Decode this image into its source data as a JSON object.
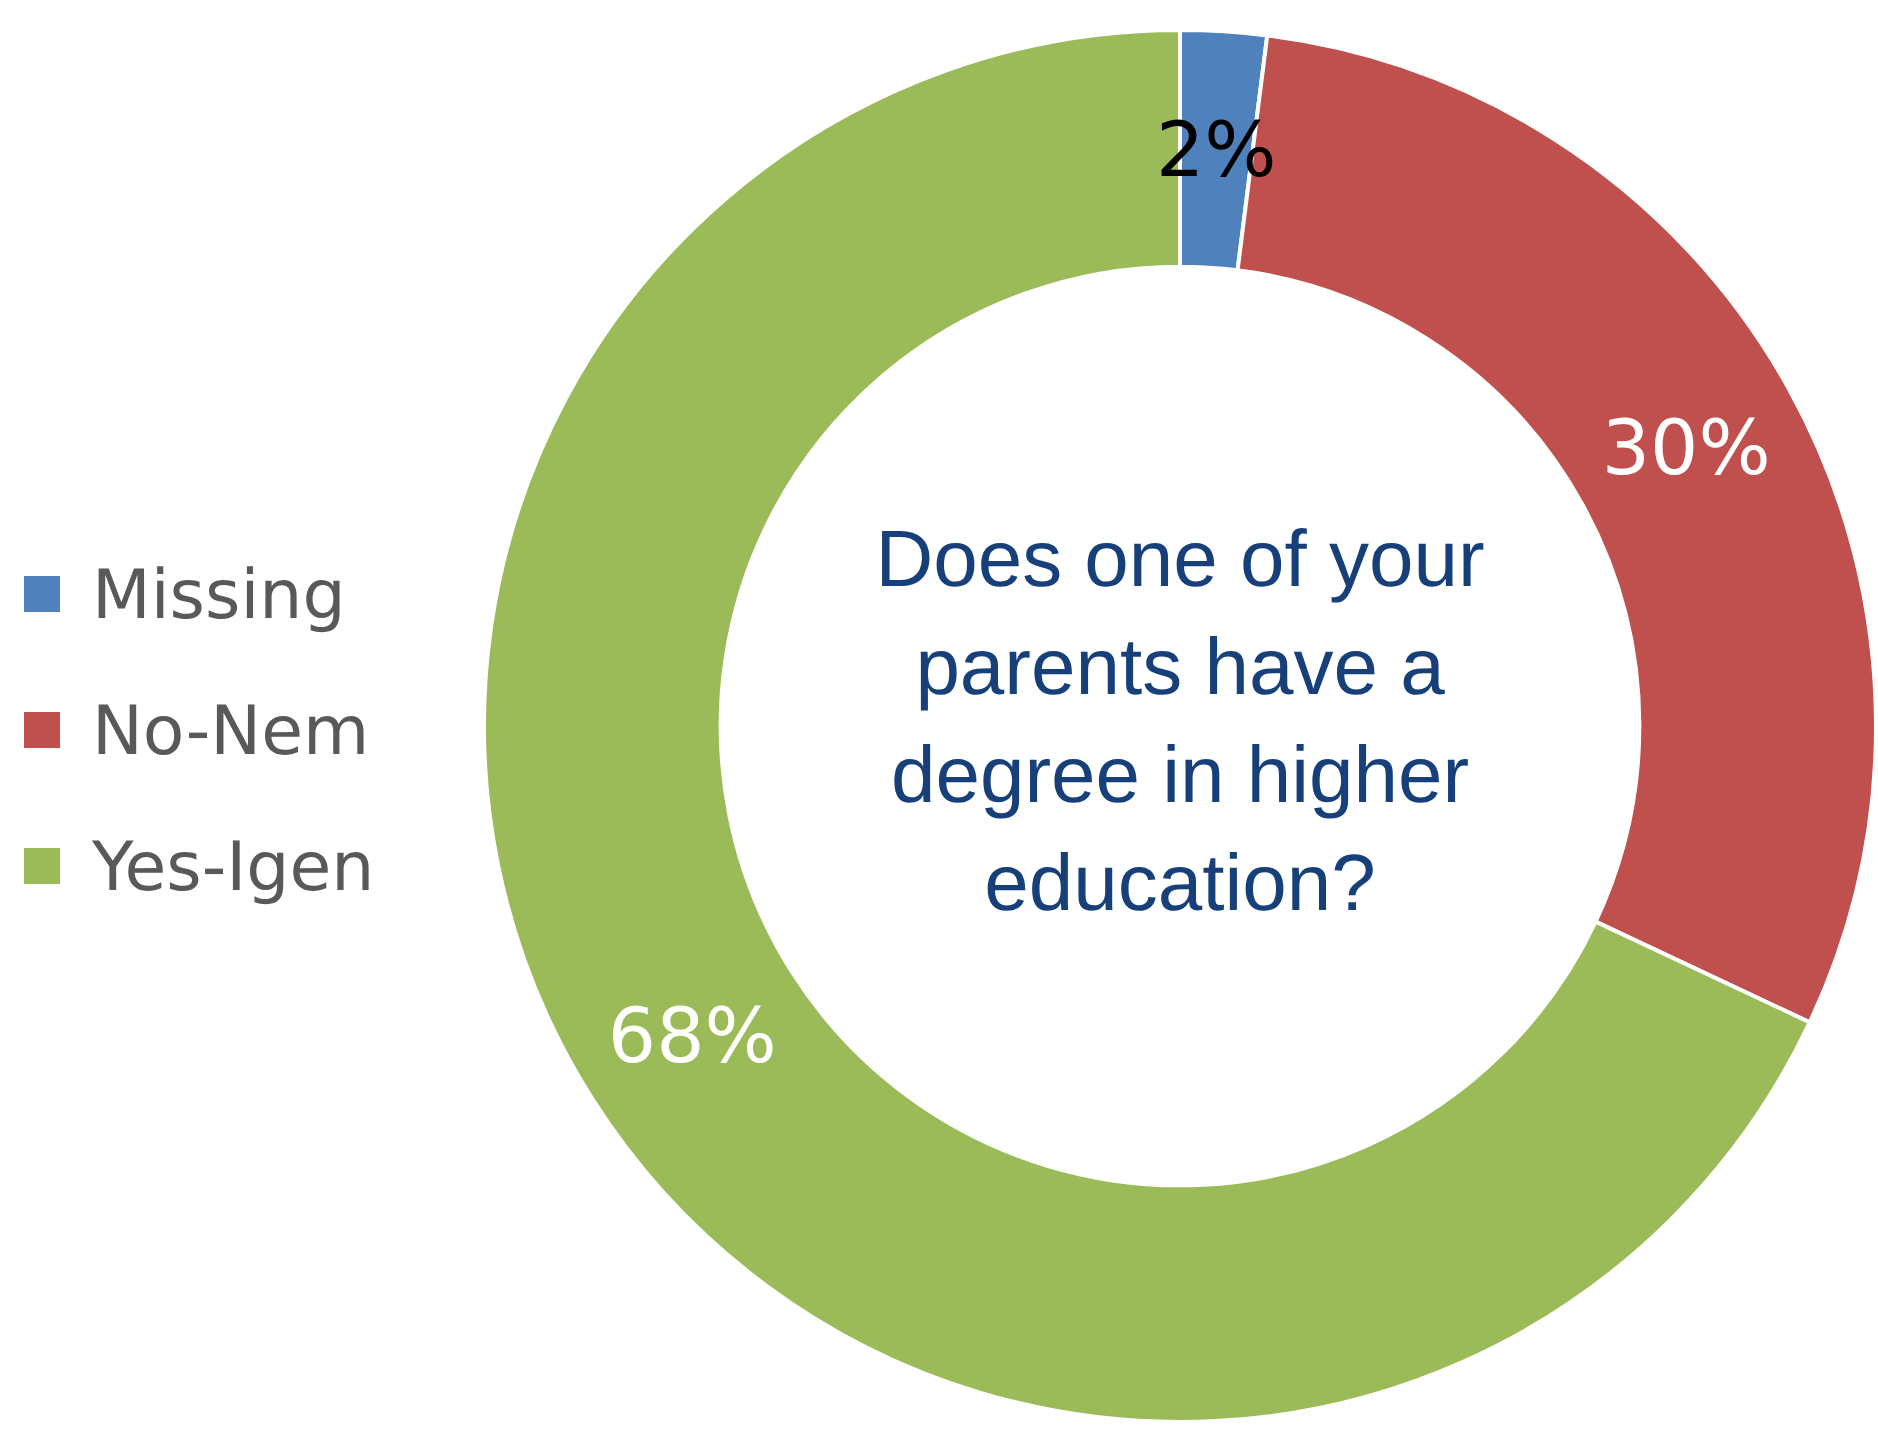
{
  "chart_data": {
    "type": "donut",
    "title": "Does one of your parents have a degree in higher education?",
    "categories": [
      "Missing",
      "No-Nem",
      "Yes-Igen"
    ],
    "values": [
      2,
      30,
      68
    ],
    "colors": [
      "#4f81bd",
      "#c0504d",
      "#9bbb59"
    ],
    "value_labels": [
      "2%",
      "30%",
      "68%"
    ],
    "legend": "left"
  }
}
